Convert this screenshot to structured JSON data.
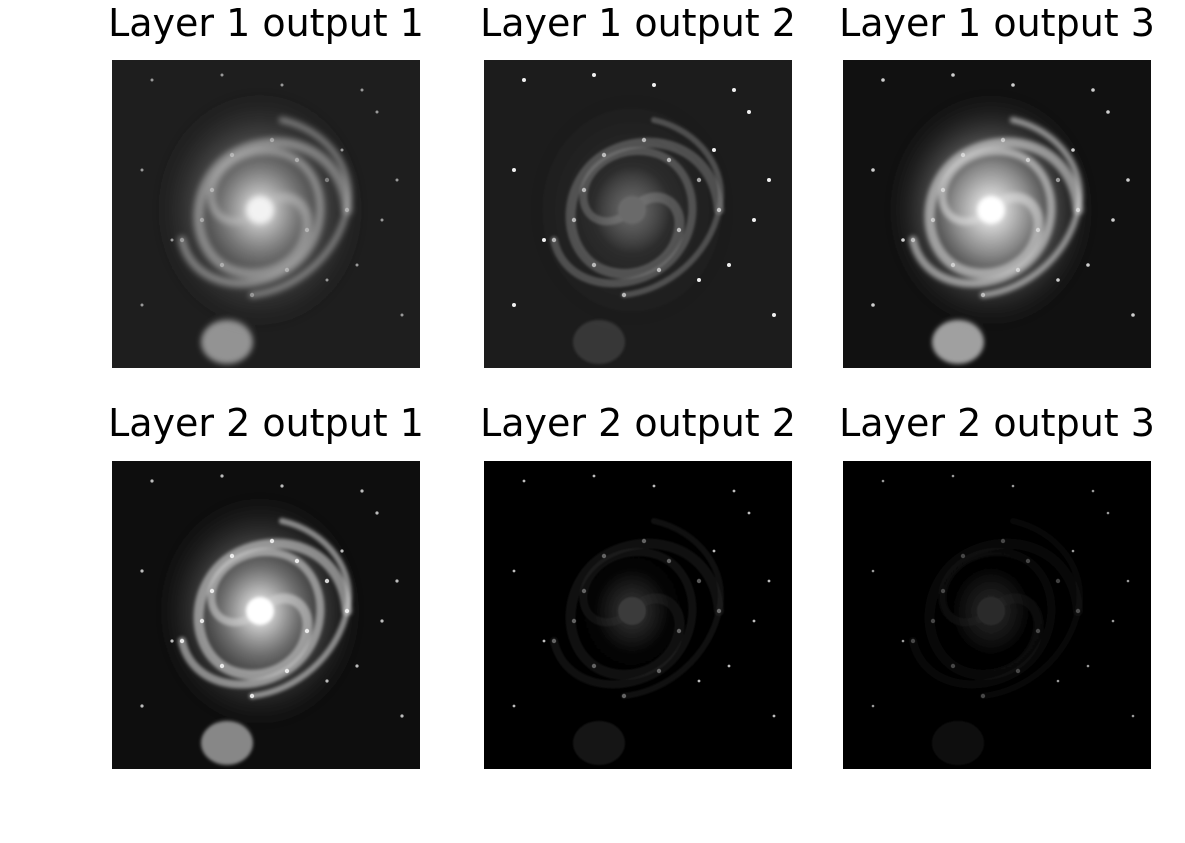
{
  "panels": [
    {
      "title": "Layer 1 output 1",
      "variant": "blur"
    },
    {
      "title": "Layer 1 output 2",
      "variant": "emboss"
    },
    {
      "title": "Layer 1 output 3",
      "variant": "bright"
    },
    {
      "title": "Layer 2 output 1",
      "variant": "clear"
    },
    {
      "title": "Layer 2 output 2",
      "variant": "sparse"
    },
    {
      "title": "Layer 2 output 3",
      "variant": "faint"
    }
  ]
}
